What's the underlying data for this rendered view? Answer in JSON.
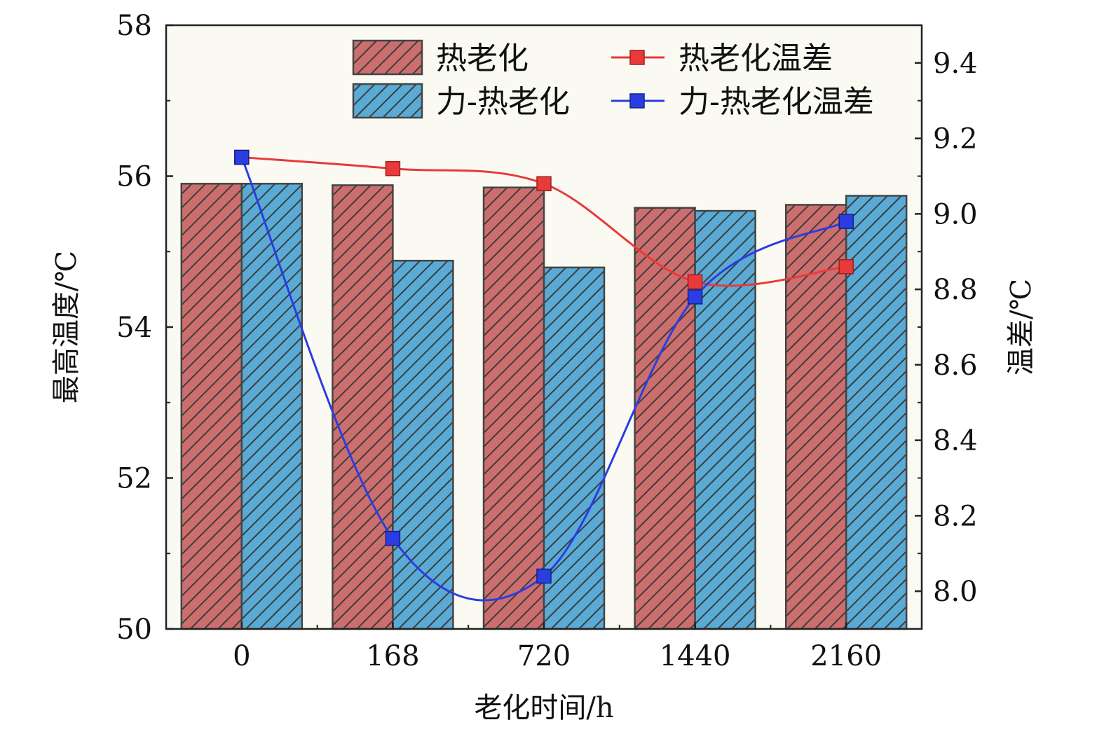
{
  "chart_data": {
    "type": "bar",
    "title": "",
    "xlabel": "老化时间/h",
    "ylabel": "最高温度/℃",
    "y2label": "温差/℃",
    "categories": [
      "0",
      "168",
      "720",
      "1440",
      "2160"
    ],
    "ylim": [
      50,
      58
    ],
    "yticks": [
      "50",
      "52",
      "54",
      "56",
      "58"
    ],
    "y2lim": [
      7.9,
      9.5
    ],
    "y2ticks": [
      "8.0",
      "8.2",
      "8.4",
      "8.6",
      "8.8",
      "9.0",
      "9.2",
      "9.4"
    ],
    "series": [
      {
        "name": "热老化",
        "kind": "bar",
        "axis": "left",
        "color": "#cd6e6e",
        "values": [
          55.9,
          55.88,
          55.85,
          55.58,
          55.62
        ]
      },
      {
        "name": "力-热老化",
        "kind": "bar",
        "axis": "right_no",
        "color": "#5aaad6",
        "values": [
          55.9,
          54.88,
          54.79,
          55.54,
          55.74
        ]
      },
      {
        "name": "热老化温差",
        "kind": "line",
        "axis": "right",
        "color": "#e83a3a",
        "values": [
          9.15,
          9.12,
          9.08,
          8.82,
          8.86
        ]
      },
      {
        "name": "力-热老化温差",
        "kind": "line",
        "axis": "right",
        "color": "#2a3ee0",
        "values": [
          9.15,
          8.14,
          8.04,
          8.78,
          8.98
        ]
      }
    ],
    "legend": {
      "position": "top",
      "items": [
        "热老化",
        "力-热老化",
        "热老化温差",
        "力-热老化温差"
      ]
    },
    "plot_background": "#fafaf2"
  }
}
